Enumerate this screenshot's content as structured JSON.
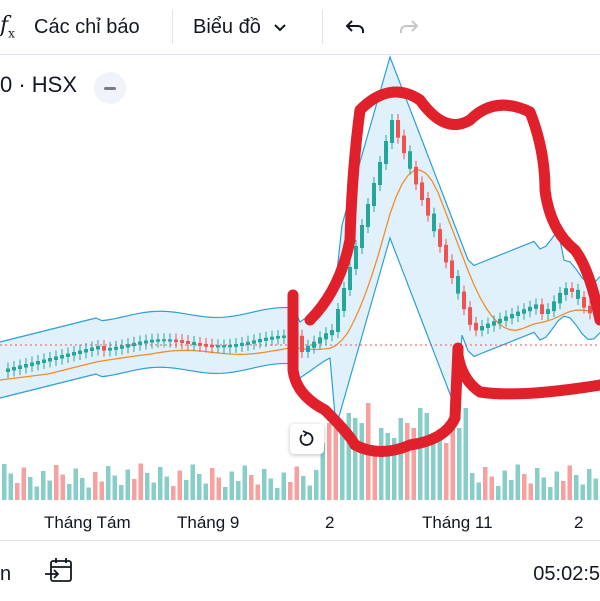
{
  "toolbar": {
    "fx_symbol": "f",
    "fx_sub": "x",
    "indicators_label": "Các chỉ báo",
    "chart_type_label": "Biểu đồ"
  },
  "legend": {
    "symbol": "0 · HSX"
  },
  "x_axis": {
    "labels": [
      "Tháng Tám",
      "Tháng 9",
      "2",
      "Tháng 11",
      "2"
    ]
  },
  "bottom": {
    "left_text": "n",
    "time": "05:02:5"
  },
  "colors": {
    "up": "#26a69a",
    "down": "#ef5350",
    "band": "#2a9fd6",
    "band_fill": "#d9eefa",
    "ma": "#f28b2e",
    "annotation": "#e0202a"
  },
  "chart_data": {
    "type": "candlestick",
    "indicators": [
      "Bollinger Bands",
      "Volume"
    ],
    "annotation": "red freehand outline around Oct–Nov spike"
  }
}
